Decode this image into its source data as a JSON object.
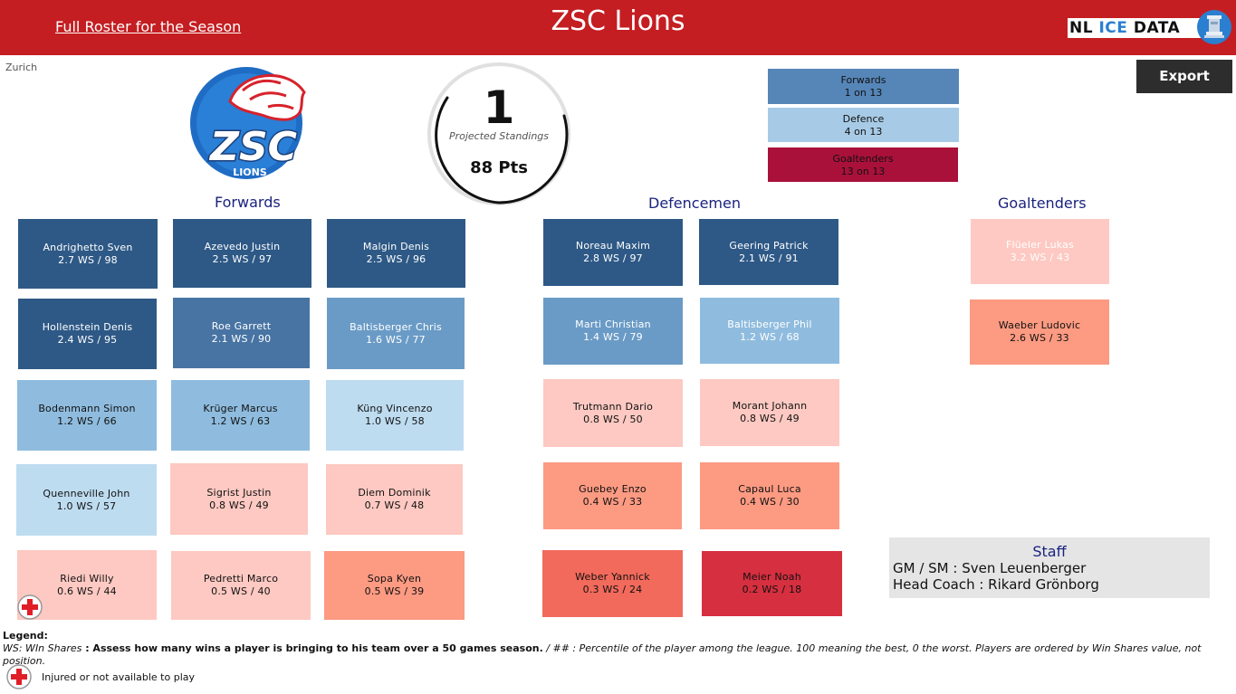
{
  "header": {
    "roster_link": "Full Roster for the Season",
    "title": "ZSC Lions",
    "brand": {
      "nl": "NL",
      "ice": "ICE",
      "data": "DATA"
    }
  },
  "city": "Zurich",
  "logo": {
    "main": "ZSC",
    "sub": "LIONS"
  },
  "standings": {
    "rank": "1",
    "label": "Projected Standings",
    "points": "88 Pts"
  },
  "position_ranks": [
    {
      "name": "Forwards",
      "rank": "1 on 13",
      "color": "#5686b8"
    },
    {
      "name": "Defence",
      "rank": "4 on 13",
      "color": "#a7cbe6"
    },
    {
      "name": "Goaltenders",
      "rank": "13 on 13",
      "color": "#a9113a"
    }
  ],
  "export_label": "Export",
  "sections": {
    "forwards": "Forwards",
    "defence": "Defencemen",
    "goalies": "Goaltenders"
  },
  "forwards": [
    {
      "name": "Andrighetto Sven",
      "stats": "2.7 WS  /  98",
      "color": "#2e5986"
    },
    {
      "name": "Azevedo Justin",
      "stats": "2.5 WS  /  97",
      "color": "#2e5986"
    },
    {
      "name": "Malgin Denis",
      "stats": "2.5 WS  /  96",
      "color": "#2e5986"
    },
    {
      "name": "Hollenstein Denis",
      "stats": "2.4 WS  /  95",
      "color": "#2e5986"
    },
    {
      "name": "Roe Garrett",
      "stats": "2.1 WS  /  90",
      "color": "#4874a3"
    },
    {
      "name": "Baltisberger Chris",
      "stats": "1.6 WS  /  77",
      "color": "#6a9bc6"
    },
    {
      "name": "Bodenmann Simon",
      "stats": "1.2 WS  /  66",
      "color": "#8fbcde"
    },
    {
      "name": "Krüger Marcus",
      "stats": "1.2 WS  /  63",
      "color": "#8fbcde"
    },
    {
      "name": "Küng Vincenzo",
      "stats": "1.0 WS  /  58",
      "color": "#bedcf0"
    },
    {
      "name": "Quenneville John",
      "stats": "1.0 WS  /  57",
      "color": "#bedcf0"
    },
    {
      "name": "Sigrist Justin",
      "stats": "0.8 WS  /  49",
      "color": "#fdc9c2"
    },
    {
      "name": "Diem Dominik",
      "stats": "0.7 WS  /  48",
      "color": "#fdc9c2"
    },
    {
      "name": "Riedi Willy",
      "stats": "0.6 WS  /  44",
      "color": "#fdc9c2"
    },
    {
      "name": "Pedretti Marco",
      "stats": "0.5 WS  /  40",
      "color": "#fdc9c2"
    },
    {
      "name": "Sopa Kyen",
      "stats": "0.5 WS  /  39",
      "color": "#fc9a82"
    }
  ],
  "defence": [
    {
      "name": "Noreau Maxim",
      "stats": "2.8 WS  /  97",
      "color": "#2e5986"
    },
    {
      "name": "Geering Patrick",
      "stats": "2.1 WS  /  91",
      "color": "#2e5986"
    },
    {
      "name": "Marti Christian",
      "stats": "1.4 WS  /  79",
      "color": "#6a9bc6"
    },
    {
      "name": "Baltisberger Phil",
      "stats": "1.2 WS  /  68",
      "color": "#8fbcde"
    },
    {
      "name": "Trutmann Dario",
      "stats": "0.8 WS  /  50",
      "color": "#fdc9c2"
    },
    {
      "name": "Morant Johann",
      "stats": "0.8 WS  /  49",
      "color": "#fdc9c2"
    },
    {
      "name": "Guebey Enzo",
      "stats": "0.4 WS  /  33",
      "color": "#fc9a82"
    },
    {
      "name": "Capaul Luca",
      "stats": "0.4 WS  /  30",
      "color": "#fc9a82"
    },
    {
      "name": "Weber Yannick",
      "stats": "0.3 WS  /  24",
      "color": "#f26a5c"
    },
    {
      "name": "Meier Noah",
      "stats": "0.2 WS  /  18",
      "color": "#d62f3f"
    }
  ],
  "goalies": [
    {
      "name": "Flüeler Lukas",
      "stats": "3.2 WS  /  43",
      "color": "#fdc9c2"
    },
    {
      "name": "Waeber Ludovic",
      "stats": "2.6 WS  /  33",
      "color": "#fc9a82"
    }
  ],
  "staff": {
    "title": "Staff",
    "gm": "GM / SM : Sven Leuenberger",
    "coach": "Head Coach : Rikard Grönborg"
  },
  "legend": {
    "title": "Legend:",
    "ws_label": "WS: WIn Shares",
    "ws_desc": " : Assess how many wins a player is bringing to his team over a 50 games season.",
    "pct_desc": "   / ## : Percentile of the player among the league. 100 meaning the best, 0 the worst.    Players are ordered by Win Shares value, not position.",
    "injury_desc": "Injured or not available to play"
  }
}
